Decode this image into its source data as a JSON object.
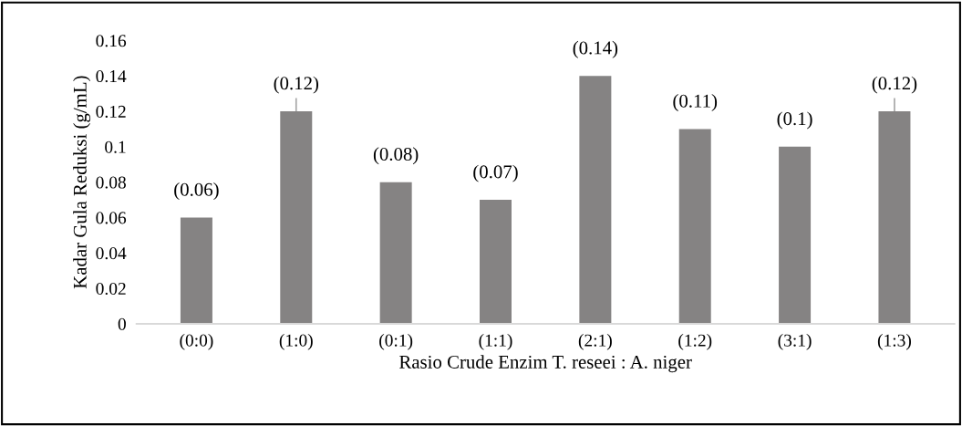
{
  "chart_data": {
    "type": "bar",
    "xlabel": "Rasio Crude Enzim T. reseei : A. niger",
    "ylabel": "Kadar Gula Reduksi (g/mL)",
    "categories": [
      "(0:0)",
      "(1:0)",
      "(0:1)",
      "(1:1)",
      "(2:1)",
      "(1:2)",
      "(3:1)",
      "(1:3)"
    ],
    "values": [
      0.06,
      0.12,
      0.08,
      0.07,
      0.14,
      0.11,
      0.1,
      0.12
    ],
    "value_labels": [
      "(0.06)",
      "(0.12)",
      "(0.08)",
      "(0.07)",
      "(0.14)",
      "(0.11)",
      "(0.1)",
      "(0.12)"
    ],
    "errors": [
      null,
      [
        0.12,
        0.127
      ],
      null,
      null,
      null,
      null,
      null,
      [
        0.12,
        0.127
      ]
    ],
    "color": "#858383",
    "ylim": [
      0,
      0.16
    ],
    "yticks": [
      0,
      0.02,
      0.04,
      0.06,
      0.08,
      0.1,
      0.12,
      0.14,
      0.16
    ],
    "grid": false
  }
}
